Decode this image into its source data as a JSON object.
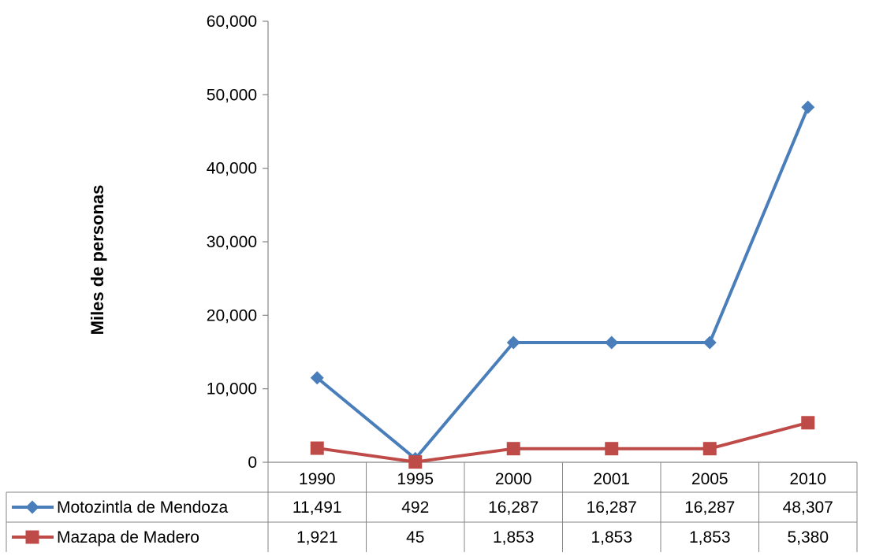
{
  "chart_data": {
    "type": "line",
    "categories": [
      "1990",
      "1995",
      "2000",
      "2001",
      "2005",
      "2010"
    ],
    "series": [
      {
        "name": "Motozintla de Mendoza",
        "values": [
          11491,
          492,
          16287,
          16287,
          16287,
          48307
        ],
        "labels": [
          "11,491",
          "492",
          "16,287",
          "16,287",
          "16,287",
          "48,307"
        ],
        "color": "#4A7EBB",
        "marker": "diamond"
      },
      {
        "name": "Mazapa de Madero",
        "values": [
          1921,
          45,
          1853,
          1853,
          1853,
          5380
        ],
        "labels": [
          "1,921",
          "45",
          "1,853",
          "1,853",
          "1,853",
          "5,380"
        ],
        "color": "#BE4B48",
        "marker": "square"
      }
    ],
    "ylabel": "Miles de personas",
    "ylim": [
      0,
      60000
    ],
    "yticks": [
      "0",
      "10,000",
      "20,000",
      "30,000",
      "40,000",
      "50,000",
      "60,000"
    ],
    "grid": false,
    "legend": "data-table"
  }
}
